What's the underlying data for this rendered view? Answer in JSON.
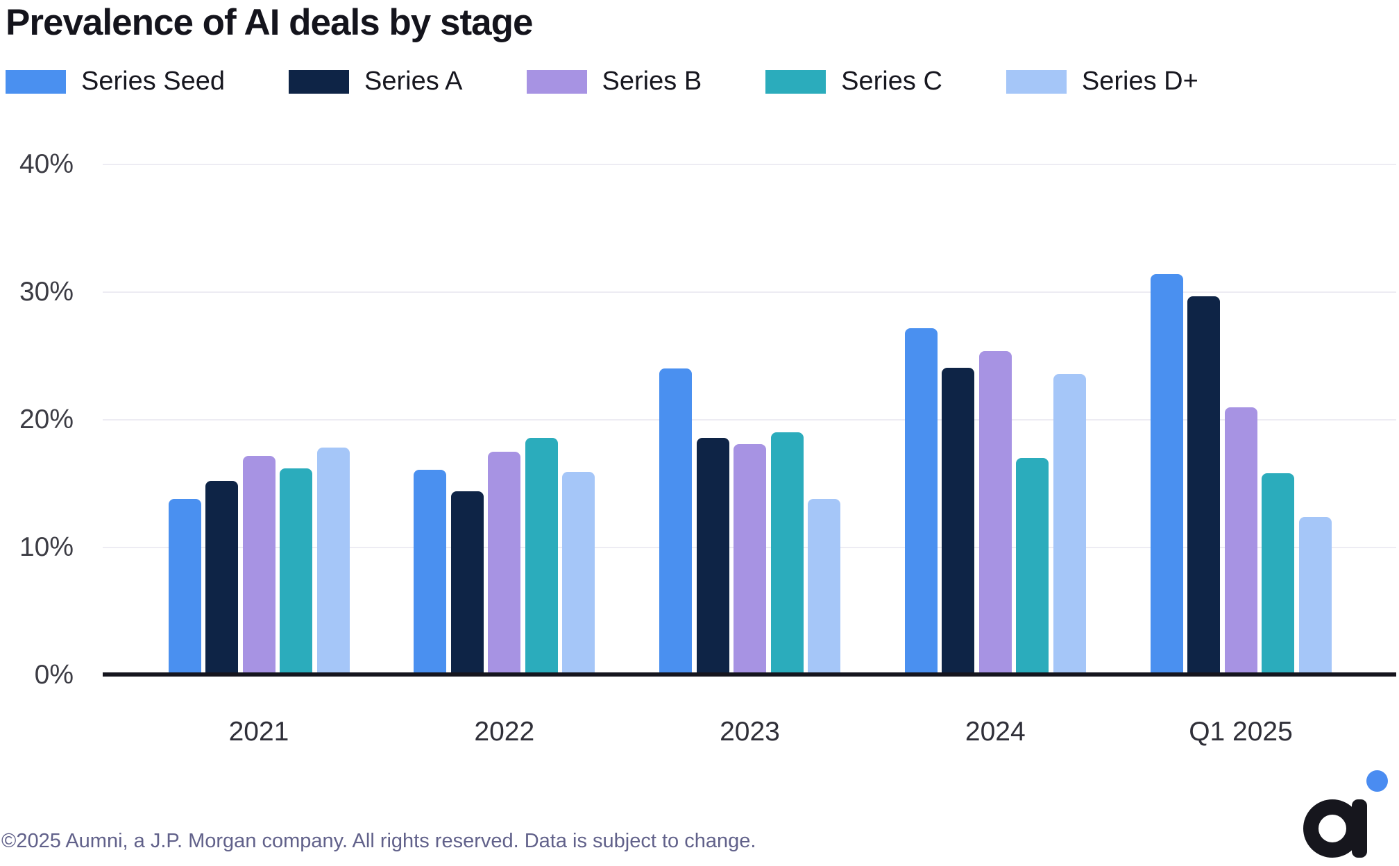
{
  "title": "Prevalence of AI deals by stage",
  "footer": {
    "text": "©2025 Aumni, a J.P. Morgan company. All rights reserved. Data is subject to change."
  },
  "logo": {
    "name": "aumni-logo",
    "mark_color": "#16161d",
    "dot_color": "#4a8cf1"
  },
  "chart_data": {
    "type": "bar",
    "title": "Prevalence of AI deals by stage",
    "xlabel": "",
    "ylabel": "",
    "ylim": [
      0,
      40
    ],
    "grid": true,
    "legend_position": "top",
    "categories": [
      "2021",
      "2022",
      "2023",
      "2024",
      "Q1 2025"
    ],
    "series": [
      {
        "name": "Series Seed",
        "color": "#4a90f0",
        "values": [
          13.8,
          16.1,
          24.0,
          27.2,
          31.4
        ]
      },
      {
        "name": "Series A",
        "color": "#0e2446",
        "values": [
          15.2,
          14.4,
          18.6,
          24.1,
          29.7
        ]
      },
      {
        "name": "Series B",
        "color": "#a793e3",
        "values": [
          17.2,
          17.5,
          18.1,
          25.4,
          21.0
        ]
      },
      {
        "name": "Series C",
        "color": "#2bacbc",
        "values": [
          16.2,
          18.6,
          19.0,
          17.0,
          15.8
        ]
      },
      {
        "name": "Series D+",
        "color": "#a5c6f8",
        "values": [
          17.8,
          15.9,
          13.8,
          23.6,
          12.4
        ]
      }
    ],
    "yticks": [
      {
        "label": "40%",
        "value": 40
      },
      {
        "label": "30%",
        "value": 30
      },
      {
        "label": "20%",
        "value": 20
      },
      {
        "label": "10%",
        "value": 10
      },
      {
        "label": "0%",
        "value": 0
      }
    ]
  }
}
